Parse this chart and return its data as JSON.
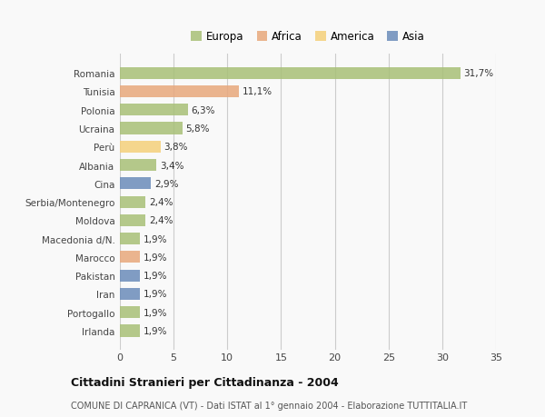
{
  "categories": [
    "Romania",
    "Tunisia",
    "Polonia",
    "Ucraina",
    "Perù",
    "Albania",
    "Cina",
    "Serbia/Montenegro",
    "Moldova",
    "Macedonia d/N.",
    "Marocco",
    "Pakistan",
    "Iran",
    "Portogallo",
    "Irlanda"
  ],
  "values": [
    31.7,
    11.1,
    6.3,
    5.8,
    3.8,
    3.4,
    2.9,
    2.4,
    2.4,
    1.9,
    1.9,
    1.9,
    1.9,
    1.9,
    1.9
  ],
  "labels": [
    "31,7%",
    "11,1%",
    "6,3%",
    "5,8%",
    "3,8%",
    "3,4%",
    "2,9%",
    "2,4%",
    "2,4%",
    "1,9%",
    "1,9%",
    "1,9%",
    "1,9%",
    "1,9%",
    "1,9%"
  ],
  "colors": [
    "#a8c077",
    "#e8a87c",
    "#a8c077",
    "#a8c077",
    "#f5d07a",
    "#a8c077",
    "#6b8cba",
    "#a8c077",
    "#a8c077",
    "#a8c077",
    "#e8a87c",
    "#6b8cba",
    "#6b8cba",
    "#a8c077",
    "#a8c077"
  ],
  "legend": {
    "Europa": "#a8c077",
    "Africa": "#e8a87c",
    "America": "#f5d07a",
    "Asia": "#6b8cba"
  },
  "xlim": [
    0,
    35
  ],
  "xticks": [
    0,
    5,
    10,
    15,
    20,
    25,
    30,
    35
  ],
  "title": "Cittadini Stranieri per Cittadinanza - 2004",
  "subtitle": "COMUNE DI CAPRANICA (VT) - Dati ISTAT al 1° gennaio 2004 - Elaborazione TUTTITALIA.IT",
  "background_color": "#f9f9f9",
  "grid_color": "#cccccc",
  "bar_height": 0.65
}
